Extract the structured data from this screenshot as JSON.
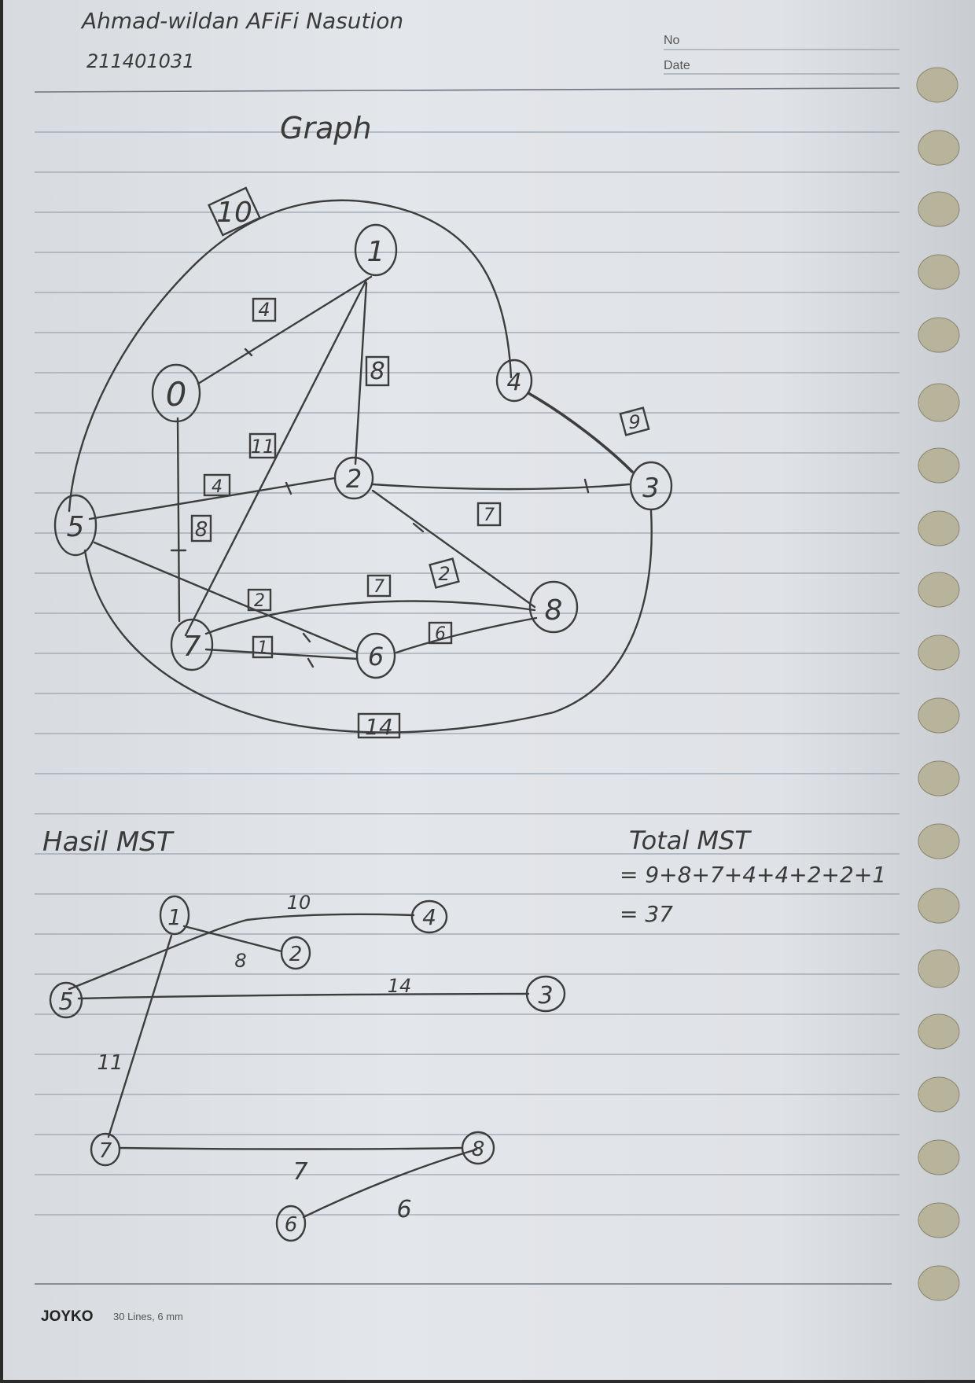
{
  "header": {
    "name": "Ahmad-wildan AFiFi Nasution",
    "student_id": "211401031",
    "no_label": "No",
    "date_label": "Date"
  },
  "graph_section": {
    "title": "Graph",
    "nodes": [
      "0",
      "1",
      "2",
      "3",
      "4",
      "5",
      "6",
      "7",
      "8"
    ],
    "edge_weights": [
      "10",
      "4",
      "8",
      "9",
      "11",
      "4",
      "7",
      "8",
      "2",
      "2",
      "7",
      "6",
      "1",
      "14"
    ]
  },
  "mst_section": {
    "title": "Hasil MST",
    "nodes": [
      "1",
      "4",
      "2",
      "5",
      "3",
      "7",
      "8",
      "6"
    ],
    "edge_weights": [
      "10",
      "8",
      "14",
      "11",
      "7",
      "6"
    ]
  },
  "total": {
    "title": "Total MST",
    "line1": "= 9+8+7+4+4+2+2+1",
    "line2": "= 37"
  },
  "footer": {
    "brand": "JOYKO",
    "spec": "30 Lines, 6 mm"
  }
}
